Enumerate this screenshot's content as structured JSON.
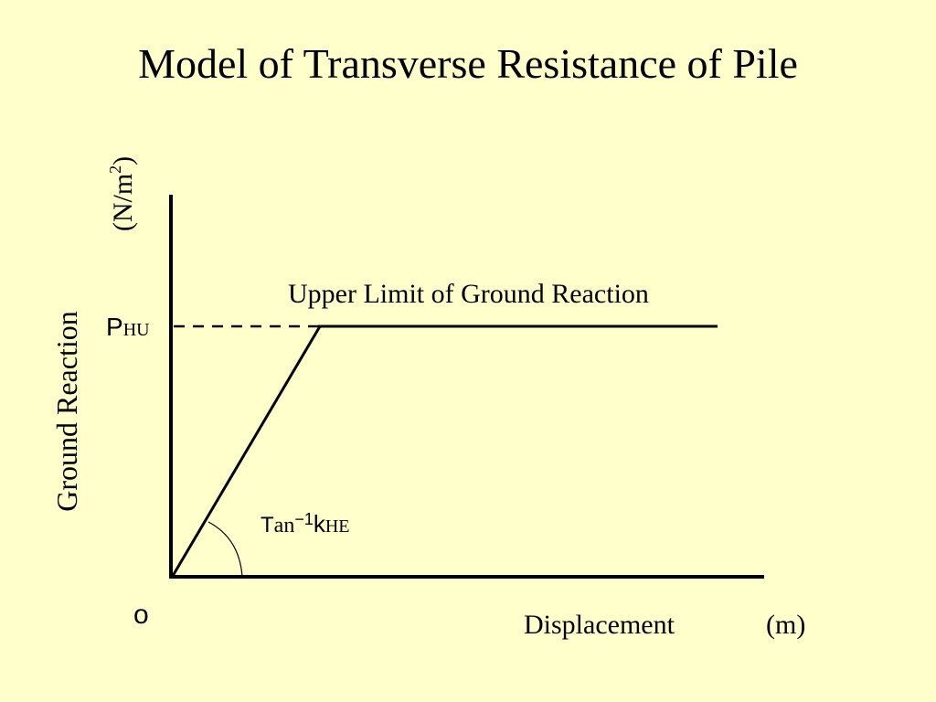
{
  "slide": {
    "title": "Model of Transverse Resistance of Pile",
    "background_color": "#ffffcc"
  },
  "diagram": {
    "y_axis": {
      "label": "Ground Reaction",
      "unit": "(N/m",
      "unit_sup": "2",
      "unit_close": ")"
    },
    "x_axis": {
      "label": "Displacement",
      "unit": "(m)"
    },
    "origin_label": "o",
    "p_label": {
      "main": "P",
      "sub": "HU"
    },
    "upper_limit_label": "Upper Limit of Ground Reaction",
    "slope_label": {
      "prefix": "T",
      "mid": "an",
      "exp": "−1",
      "k": "k",
      "sub": "HE"
    }
  }
}
